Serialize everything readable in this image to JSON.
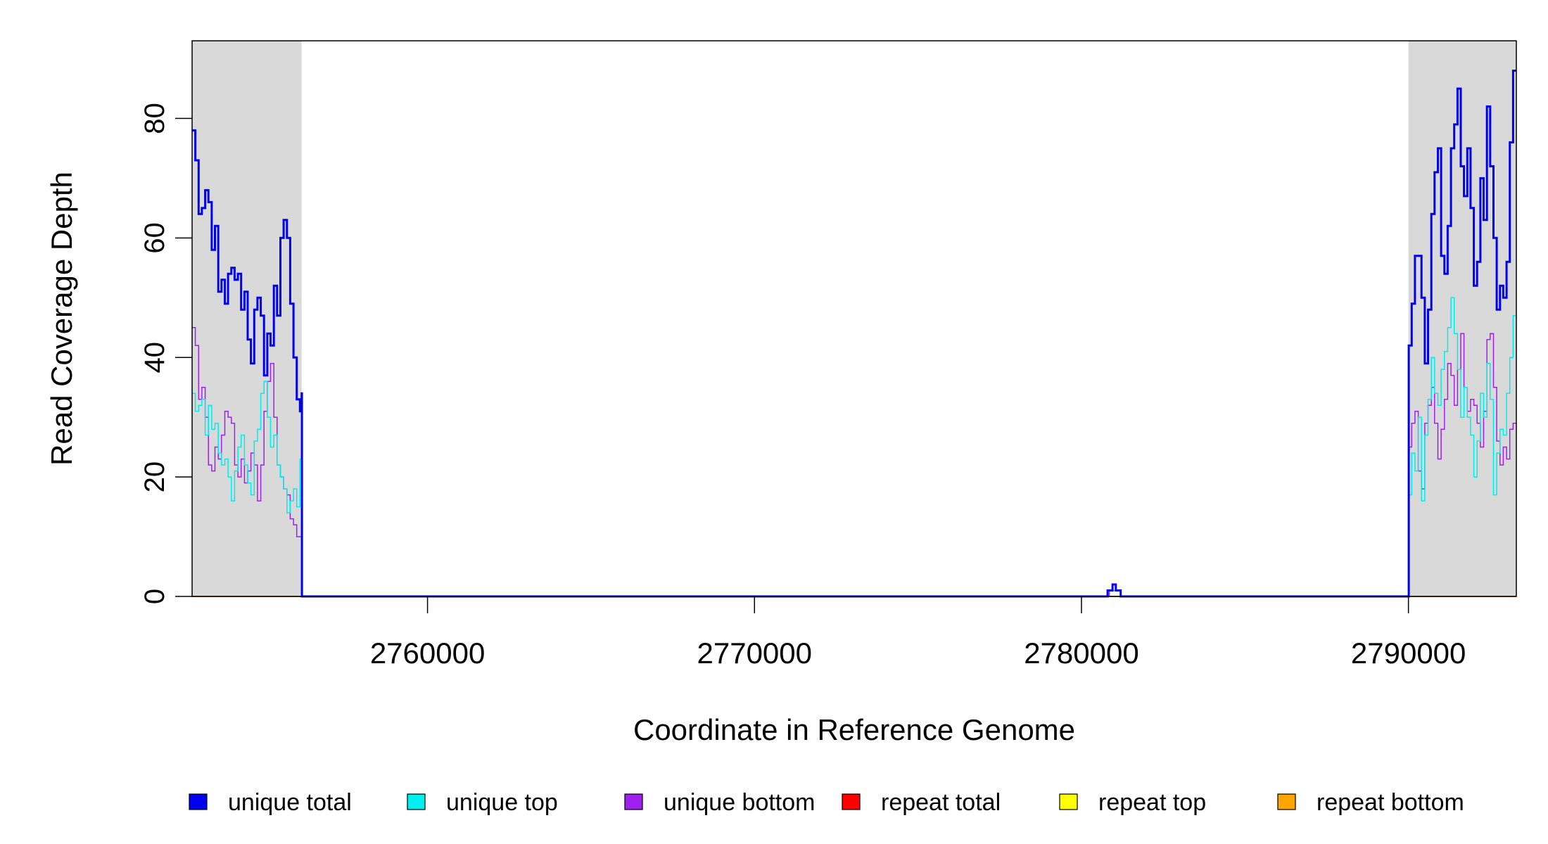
{
  "chart_data": {
    "type": "line",
    "title": "",
    "xlabel": "Coordinate in Reference Genome",
    "ylabel": "Read Coverage Depth",
    "xlim": [
      2752800,
      2793300
    ],
    "ylim": [
      0,
      93
    ],
    "x_ticks": [
      2760000,
      2770000,
      2780000,
      2790000
    ],
    "x_tick_labels": [
      "2760000",
      "2770000",
      "2780000",
      "2790000"
    ],
    "y_ticks": [
      0,
      20,
      40,
      60,
      80
    ],
    "y_tick_labels": [
      "0",
      "20",
      "40",
      "60",
      "80"
    ],
    "grid": false,
    "shaded_regions": [
      {
        "x0": 2752800,
        "x1": 2756150,
        "color": "#d9d9d9"
      },
      {
        "x0": 2790000,
        "x1": 2793300,
        "color": "#d9d9d9"
      }
    ],
    "legend_position": "bottom",
    "series": [
      {
        "name": "unique total",
        "color": "#0000ee",
        "width": 3,
        "points": [
          [
            2752800,
            78
          ],
          [
            2752900,
            73
          ],
          [
            2753000,
            64
          ],
          [
            2753100,
            65
          ],
          [
            2753200,
            68
          ],
          [
            2753300,
            66
          ],
          [
            2753400,
            58
          ],
          [
            2753500,
            62
          ],
          [
            2753600,
            51
          ],
          [
            2753700,
            53
          ],
          [
            2753800,
            49
          ],
          [
            2753900,
            54
          ],
          [
            2754000,
            55
          ],
          [
            2754100,
            53
          ],
          [
            2754200,
            54
          ],
          [
            2754300,
            48
          ],
          [
            2754400,
            51
          ],
          [
            2754500,
            43
          ],
          [
            2754600,
            39
          ],
          [
            2754700,
            48
          ],
          [
            2754800,
            50
          ],
          [
            2754900,
            47
          ],
          [
            2755000,
            37
          ],
          [
            2755100,
            44
          ],
          [
            2755200,
            42
          ],
          [
            2755300,
            52
          ],
          [
            2755400,
            47
          ],
          [
            2755500,
            60
          ],
          [
            2755600,
            63
          ],
          [
            2755700,
            60
          ],
          [
            2755800,
            49
          ],
          [
            2755900,
            40
          ],
          [
            2756000,
            33
          ],
          [
            2756100,
            31
          ],
          [
            2756150,
            34
          ],
          [
            2756160,
            0
          ],
          [
            2780750,
            0
          ],
          [
            2780800,
            1
          ],
          [
            2780950,
            2
          ],
          [
            2781050,
            1
          ],
          [
            2781200,
            0
          ],
          [
            2790000,
            0
          ],
          [
            2790010,
            42
          ],
          [
            2790100,
            49
          ],
          [
            2790200,
            57
          ],
          [
            2790400,
            50
          ],
          [
            2790500,
            39
          ],
          [
            2790600,
            48
          ],
          [
            2790700,
            64
          ],
          [
            2790800,
            71
          ],
          [
            2790900,
            75
          ],
          [
            2791000,
            57
          ],
          [
            2791100,
            54
          ],
          [
            2791200,
            62
          ],
          [
            2791300,
            75
          ],
          [
            2791400,
            79
          ],
          [
            2791500,
            85
          ],
          [
            2791600,
            72
          ],
          [
            2791700,
            67
          ],
          [
            2791800,
            75
          ],
          [
            2791900,
            65
          ],
          [
            2792000,
            52
          ],
          [
            2792100,
            56
          ],
          [
            2792200,
            70
          ],
          [
            2792300,
            63
          ],
          [
            2792400,
            82
          ],
          [
            2792500,
            72
          ],
          [
            2792600,
            60
          ],
          [
            2792700,
            48
          ],
          [
            2792800,
            52
          ],
          [
            2792900,
            50
          ],
          [
            2793000,
            56
          ],
          [
            2793100,
            76
          ],
          [
            2793200,
            88
          ],
          [
            2793300,
            88
          ]
        ]
      },
      {
        "name": "unique top",
        "color": "#00eeee",
        "width": 1.5,
        "points": [
          [
            2752800,
            34
          ],
          [
            2752900,
            31
          ],
          [
            2753000,
            32
          ],
          [
            2753100,
            33
          ],
          [
            2753200,
            27
          ],
          [
            2753300,
            32
          ],
          [
            2753400,
            28
          ],
          [
            2753500,
            29
          ],
          [
            2753600,
            24
          ],
          [
            2753700,
            22
          ],
          [
            2753800,
            23
          ],
          [
            2753900,
            20
          ],
          [
            2754000,
            16
          ],
          [
            2754100,
            21
          ],
          [
            2754200,
            25
          ],
          [
            2754300,
            27
          ],
          [
            2754400,
            22
          ],
          [
            2754500,
            19
          ],
          [
            2754600,
            17
          ],
          [
            2754700,
            26
          ],
          [
            2754800,
            28
          ],
          [
            2754900,
            34
          ],
          [
            2755000,
            36
          ],
          [
            2755100,
            30
          ],
          [
            2755200,
            25
          ],
          [
            2755300,
            27
          ],
          [
            2755400,
            22
          ],
          [
            2755500,
            20
          ],
          [
            2755600,
            18
          ],
          [
            2755700,
            14
          ],
          [
            2755800,
            16
          ],
          [
            2755900,
            18
          ],
          [
            2756000,
            15
          ],
          [
            2756100,
            23
          ],
          [
            2756150,
            12
          ],
          [
            2756160,
            0
          ],
          [
            2780750,
            0
          ],
          [
            2780800,
            1
          ],
          [
            2781050,
            1
          ],
          [
            2781200,
            0
          ],
          [
            2790000,
            0
          ],
          [
            2790010,
            17
          ],
          [
            2790100,
            24
          ],
          [
            2790200,
            21
          ],
          [
            2790300,
            30
          ],
          [
            2790400,
            16
          ],
          [
            2790500,
            27
          ],
          [
            2790600,
            33
          ],
          [
            2790700,
            40
          ],
          [
            2790800,
            34
          ],
          [
            2790900,
            32
          ],
          [
            2791000,
            38
          ],
          [
            2791100,
            41
          ],
          [
            2791200,
            45
          ],
          [
            2791300,
            50
          ],
          [
            2791400,
            44
          ],
          [
            2791500,
            38
          ],
          [
            2791600,
            30
          ],
          [
            2791700,
            35
          ],
          [
            2791800,
            30
          ],
          [
            2791900,
            27
          ],
          [
            2792000,
            20
          ],
          [
            2792100,
            26
          ],
          [
            2792200,
            34
          ],
          [
            2792300,
            30
          ],
          [
            2792400,
            39
          ],
          [
            2792500,
            33
          ],
          [
            2792600,
            17
          ],
          [
            2792700,
            24
          ],
          [
            2792800,
            28
          ],
          [
            2792900,
            27
          ],
          [
            2793000,
            34
          ],
          [
            2793100,
            40
          ],
          [
            2793200,
            47
          ],
          [
            2793300,
            47
          ]
        ]
      },
      {
        "name": "unique bottom",
        "color": "#a020f0",
        "width": 1.5,
        "points": [
          [
            2752800,
            45
          ],
          [
            2752900,
            42
          ],
          [
            2753000,
            33
          ],
          [
            2753100,
            35
          ],
          [
            2753200,
            30
          ],
          [
            2753300,
            22
          ],
          [
            2753400,
            21
          ],
          [
            2753500,
            25
          ],
          [
            2753600,
            23
          ],
          [
            2753700,
            27
          ],
          [
            2753800,
            31
          ],
          [
            2753900,
            30
          ],
          [
            2754000,
            29
          ],
          [
            2754100,
            22
          ],
          [
            2754200,
            20
          ],
          [
            2754300,
            23
          ],
          [
            2754400,
            19
          ],
          [
            2754500,
            21
          ],
          [
            2754600,
            24
          ],
          [
            2754700,
            22
          ],
          [
            2754800,
            16
          ],
          [
            2754900,
            22
          ],
          [
            2755000,
            31
          ],
          [
            2755100,
            36
          ],
          [
            2755200,
            39
          ],
          [
            2755300,
            30
          ],
          [
            2755400,
            22
          ],
          [
            2755500,
            20
          ],
          [
            2755600,
            18
          ],
          [
            2755700,
            17
          ],
          [
            2755800,
            13
          ],
          [
            2755900,
            12
          ],
          [
            2756000,
            10
          ],
          [
            2756100,
            10
          ],
          [
            2756150,
            9
          ],
          [
            2756160,
            0
          ],
          [
            2780750,
            0
          ],
          [
            2780850,
            1
          ],
          [
            2781000,
            1
          ],
          [
            2781200,
            0
          ],
          [
            2790000,
            0
          ],
          [
            2790010,
            25
          ],
          [
            2790100,
            29
          ],
          [
            2790200,
            31
          ],
          [
            2790300,
            21
          ],
          [
            2790400,
            18
          ],
          [
            2790500,
            29
          ],
          [
            2790600,
            32
          ],
          [
            2790700,
            35
          ],
          [
            2790800,
            29
          ],
          [
            2790900,
            23
          ],
          [
            2791000,
            28
          ],
          [
            2791100,
            33
          ],
          [
            2791200,
            39
          ],
          [
            2791300,
            37
          ],
          [
            2791400,
            32
          ],
          [
            2791500,
            38
          ],
          [
            2791600,
            44
          ],
          [
            2791700,
            35
          ],
          [
            2791800,
            31
          ],
          [
            2791900,
            33
          ],
          [
            2792000,
            32
          ],
          [
            2792100,
            29
          ],
          [
            2792200,
            25
          ],
          [
            2792300,
            31
          ],
          [
            2792400,
            43
          ],
          [
            2792500,
            44
          ],
          [
            2792600,
            35
          ],
          [
            2792700,
            26
          ],
          [
            2792800,
            22
          ],
          [
            2792900,
            25
          ],
          [
            2793000,
            23
          ],
          [
            2793100,
            28
          ],
          [
            2793200,
            29
          ],
          [
            2793300,
            29
          ]
        ]
      },
      {
        "name": "repeat total",
        "color": "#ff0000",
        "width": 1.5,
        "points": [
          [
            2752800,
            0
          ],
          [
            2793300,
            0
          ]
        ]
      },
      {
        "name": "repeat top",
        "color": "#ffff00",
        "width": 1.5,
        "points": [
          [
            2752800,
            0
          ],
          [
            2793300,
            0
          ]
        ]
      },
      {
        "name": "repeat bottom",
        "color": "#ffa500",
        "width": 2,
        "points": [
          [
            2752800,
            0
          ],
          [
            2756150,
            0
          ],
          [
            2790000,
            0
          ],
          [
            2793300,
            0
          ]
        ]
      }
    ]
  }
}
